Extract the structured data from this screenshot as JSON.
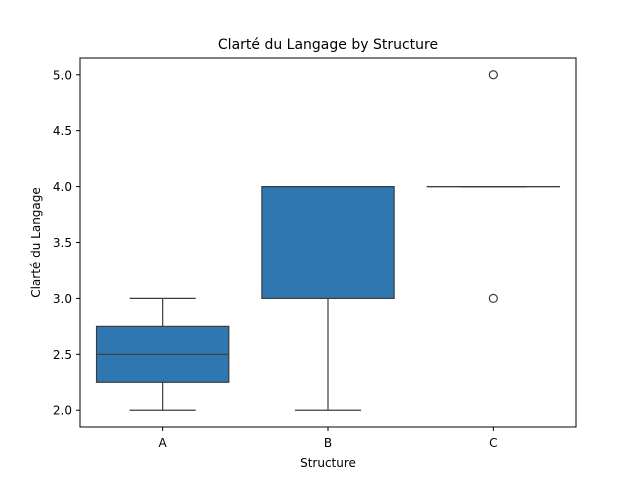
{
  "chart_data": {
    "type": "box",
    "title": "Clarté du Langage by Structure",
    "xlabel": "Structure",
    "ylabel": "Clarté du Langage",
    "categories": [
      "A",
      "B",
      "C"
    ],
    "ylim": [
      1.85,
      5.15
    ],
    "yticks": [
      "2.0",
      "2.5",
      "3.0",
      "3.5",
      "4.0",
      "4.5",
      "5.0"
    ],
    "grid": false,
    "color": "#2f77b1",
    "line_color": "#3d3d3d",
    "boxes": [
      {
        "category": "A",
        "whisker_low": 2.0,
        "q1": 2.25,
        "median": 2.5,
        "q3": 2.75,
        "whisker_high": 3.0,
        "outliers": []
      },
      {
        "category": "B",
        "whisker_low": 2.0,
        "q1": 3.0,
        "median": 4.0,
        "q3": 4.0,
        "whisker_high": 4.0,
        "outliers": []
      },
      {
        "category": "C",
        "whisker_low": 4.0,
        "q1": 4.0,
        "median": 4.0,
        "q3": 4.0,
        "whisker_high": 4.0,
        "outliers": [
          5.0,
          3.0
        ]
      }
    ]
  }
}
